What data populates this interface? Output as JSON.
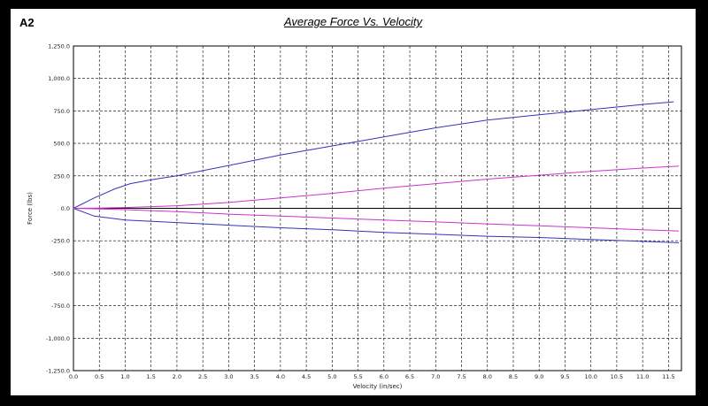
{
  "panel_id": "A2",
  "chart_data": {
    "type": "line",
    "title": "Average Force Vs. Velocity",
    "xlabel": "Velocity (in/sec)",
    "ylabel": "Force (lbs)",
    "xlim": [
      0.0,
      11.75
    ],
    "ylim": [
      -1250.0,
      1250.0
    ],
    "x_ticks": [
      "0.0",
      "0.5",
      "1.0",
      "1.5",
      "2.0",
      "2.5",
      "3.0",
      "3.5",
      "4.0",
      "4.5",
      "5.0",
      "5.5",
      "6.0",
      "6.5",
      "7.0",
      "7.5",
      "8.0",
      "8.5",
      "9.0",
      "9.5",
      "10.0",
      "10.5",
      "11.0",
      "11.5"
    ],
    "y_ticks": [
      "1,250.0",
      "1,000.0",
      "750.0",
      "500.0",
      "250.0",
      "0.0",
      "-250.0",
      "-500.0",
      "-750.0",
      "-1,000.0",
      "-1,250.0"
    ],
    "grid": true,
    "series": [
      {
        "color": "#3333bb",
        "x": [
          0,
          0.4,
          0.8,
          1.1,
          1.5,
          2,
          3,
          4,
          5,
          6,
          7,
          8,
          9,
          10,
          11,
          11.6
        ],
        "y": [
          0,
          80,
          150,
          190,
          220,
          250,
          330,
          410,
          480,
          550,
          620,
          680,
          720,
          760,
          800,
          820
        ]
      },
      {
        "color": "#3333bb",
        "x": [
          0,
          0.4,
          1,
          2,
          3,
          4,
          5,
          6,
          7,
          8,
          9,
          10,
          11,
          11.7
        ],
        "y": [
          0,
          -60,
          -90,
          -110,
          -130,
          -150,
          -165,
          -185,
          -200,
          -215,
          -225,
          -240,
          -255,
          -265
        ]
      },
      {
        "color": "#cc33cc",
        "x": [
          0,
          0.5,
          1,
          2,
          3,
          4,
          5,
          6,
          7,
          8,
          9,
          10,
          11,
          11.7
        ],
        "y": [
          0,
          2,
          6,
          20,
          45,
          80,
          115,
          155,
          190,
          225,
          255,
          285,
          310,
          325
        ]
      },
      {
        "color": "#cc33cc",
        "x": [
          0,
          1,
          2,
          3,
          4,
          5,
          6,
          7,
          8,
          9,
          10,
          11,
          11.7
        ],
        "y": [
          0,
          -10,
          -25,
          -45,
          -60,
          -75,
          -90,
          -105,
          -120,
          -135,
          -150,
          -165,
          -175
        ]
      }
    ]
  }
}
